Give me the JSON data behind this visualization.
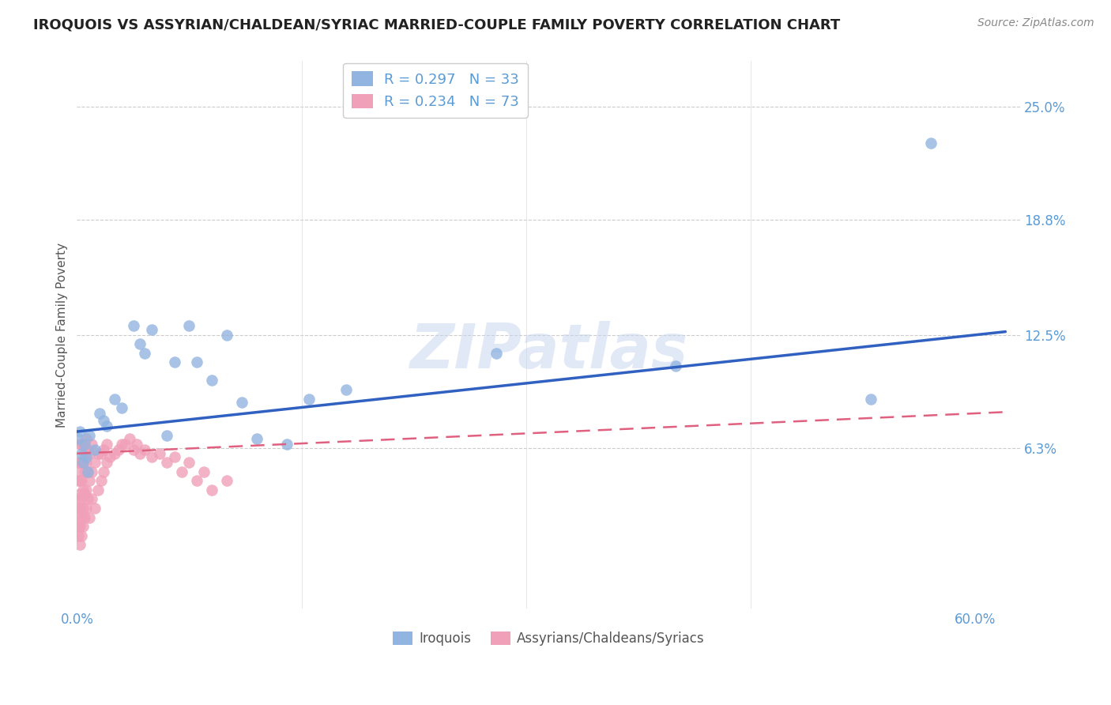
{
  "title": "IROQUOIS VS ASSYRIAN/CHALDEAN/SYRIAC MARRIED-COUPLE FAMILY POVERTY CORRELATION CHART",
  "source": "Source: ZipAtlas.com",
  "ylabel": "Married-Couple Family Poverty",
  "xlim": [
    0.0,
    0.63
  ],
  "ylim": [
    -0.025,
    0.275
  ],
  "iroquois_R": 0.297,
  "iroquois_N": 33,
  "assyrian_R": 0.234,
  "assyrian_N": 73,
  "iroquois_color": "#92B4E0",
  "assyrian_color": "#F0A0B8",
  "iroquois_line_color": "#3060C0",
  "assyrian_line_color": "#E06080",
  "background_color": "#FFFFFF",
  "iroquois_x": [
    0.001,
    0.002,
    0.003,
    0.004,
    0.005,
    0.006,
    0.007,
    0.008,
    0.012,
    0.015,
    0.018,
    0.02,
    0.025,
    0.03,
    0.038,
    0.042,
    0.045,
    0.05,
    0.06,
    0.065,
    0.075,
    0.08,
    0.09,
    0.1,
    0.11,
    0.12,
    0.14,
    0.155,
    0.18,
    0.28,
    0.4,
    0.53,
    0.57
  ],
  "iroquois_y": [
    0.068,
    0.072,
    0.06,
    0.055,
    0.065,
    0.058,
    0.05,
    0.07,
    0.062,
    0.082,
    0.078,
    0.075,
    0.09,
    0.085,
    0.13,
    0.12,
    0.115,
    0.128,
    0.07,
    0.11,
    0.13,
    0.11,
    0.1,
    0.125,
    0.088,
    0.068,
    0.065,
    0.09,
    0.095,
    0.115,
    0.108,
    0.09,
    0.23
  ],
  "assyrian_x": [
    0.001,
    0.001,
    0.001,
    0.001,
    0.001,
    0.001,
    0.001,
    0.001,
    0.002,
    0.002,
    0.002,
    0.002,
    0.002,
    0.002,
    0.002,
    0.003,
    0.003,
    0.003,
    0.003,
    0.003,
    0.003,
    0.004,
    0.004,
    0.004,
    0.004,
    0.004,
    0.005,
    0.005,
    0.005,
    0.005,
    0.006,
    0.006,
    0.006,
    0.006,
    0.007,
    0.007,
    0.007,
    0.008,
    0.008,
    0.008,
    0.01,
    0.01,
    0.01,
    0.012,
    0.012,
    0.014,
    0.014,
    0.016,
    0.016,
    0.018,
    0.018,
    0.02,
    0.02,
    0.022,
    0.025,
    0.028,
    0.03,
    0.032,
    0.035,
    0.038,
    0.04,
    0.042,
    0.045,
    0.05,
    0.055,
    0.06,
    0.065,
    0.07,
    0.075,
    0.08,
    0.085,
    0.09,
    0.1
  ],
  "assyrian_y": [
    0.015,
    0.02,
    0.025,
    0.03,
    0.035,
    0.045,
    0.05,
    0.055,
    0.01,
    0.02,
    0.03,
    0.038,
    0.045,
    0.055,
    0.065,
    0.015,
    0.025,
    0.035,
    0.045,
    0.055,
    0.065,
    0.02,
    0.03,
    0.04,
    0.055,
    0.065,
    0.025,
    0.038,
    0.05,
    0.06,
    0.03,
    0.04,
    0.055,
    0.068,
    0.035,
    0.05,
    0.062,
    0.025,
    0.045,
    0.06,
    0.035,
    0.05,
    0.065,
    0.03,
    0.055,
    0.04,
    0.06,
    0.045,
    0.06,
    0.05,
    0.062,
    0.055,
    0.065,
    0.058,
    0.06,
    0.062,
    0.065,
    0.065,
    0.068,
    0.062,
    0.065,
    0.06,
    0.062,
    0.058,
    0.06,
    0.055,
    0.058,
    0.05,
    0.055,
    0.045,
    0.05,
    0.04,
    0.045
  ],
  "ytick_vals": [
    0.063,
    0.125,
    0.188,
    0.25
  ],
  "ytick_labels": [
    "6.3%",
    "12.5%",
    "18.8%",
    "25.0%"
  ],
  "xtick_vals": [
    0.0,
    0.15,
    0.3,
    0.45,
    0.6
  ],
  "xtick_labels": [
    "0.0%",
    "",
    "",
    "",
    "60.0%"
  ],
  "legend1_label1": "R = 0.297   N = 33",
  "legend1_label2": "R = 0.234   N = 73",
  "legend2_label1": "Iroquois",
  "legend2_label2": "Assyrians/Chaldeans/Syriacs"
}
